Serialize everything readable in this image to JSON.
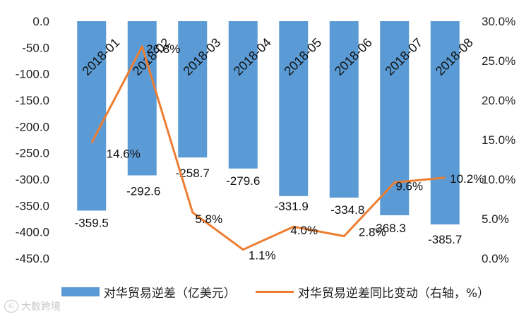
{
  "chart_data": {
    "type": "bar+line",
    "categories": [
      "2018-01",
      "2018-02",
      "2018-03",
      "2018-04",
      "2018-05",
      "2018-06",
      "2018-07",
      "2018-08"
    ],
    "series": [
      {
        "name": "对华贸易逆差（亿美元）",
        "type": "bar",
        "axis": "left",
        "values": [
          -359.5,
          -292.6,
          -258.7,
          -279.6,
          -331.9,
          -334.8,
          -368.3,
          -385.7
        ],
        "labels": [
          "-359.5",
          "-292.6",
          "-258.7",
          "-279.6",
          "-331.9",
          "-334.8",
          "-368.3",
          "-385.7"
        ],
        "color": "#5b9bd5"
      },
      {
        "name": "对华贸易逆差同比变动（右轴，%）",
        "type": "line",
        "axis": "right",
        "values": [
          14.6,
          26.8,
          5.8,
          1.1,
          4.0,
          2.8,
          9.6,
          10.2
        ],
        "labels": [
          "14.6%",
          "26.8%",
          "5.8%",
          "1.1%",
          "4.0%",
          "2.8%",
          "9.6%",
          "10.2%"
        ],
        "color": "#ed7d31"
      }
    ],
    "y_left": {
      "range": [
        -450,
        0
      ],
      "ticks": [
        "0.0",
        "-50.0",
        "-100.0",
        "-150.0",
        "-200.0",
        "-250.0",
        "-300.0",
        "-350.0",
        "-400.0",
        "-450.0"
      ]
    },
    "y_right": {
      "range": [
        0,
        30
      ],
      "ticks": [
        "30.0%",
        "25.0%",
        "20.0%",
        "15.0%",
        "10.0%",
        "5.0%",
        "0.0%"
      ]
    },
    "grid": false,
    "legend_position": "bottom"
  },
  "watermark": {
    "logo": "iC",
    "text": "大数跨境"
  }
}
